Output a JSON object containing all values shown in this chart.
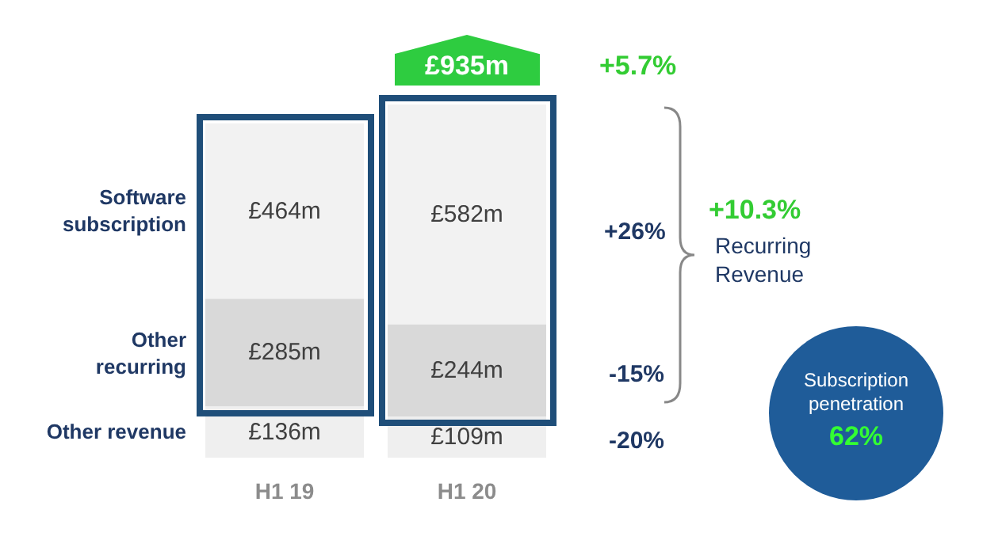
{
  "chart_data": {
    "type": "bar",
    "stacked": true,
    "categories": [
      "H1 19",
      "H1 20"
    ],
    "series": [
      {
        "name": "Other revenue",
        "color": "#efefef",
        "values": [
          136,
          109
        ],
        "value_labels": [
          "£136m",
          "£109m"
        ]
      },
      {
        "name": "Other recurring",
        "color": "#d9d9d9",
        "values": [
          285,
          244
        ],
        "value_labels": [
          "£285m",
          "£244m"
        ]
      },
      {
        "name": "Software subscription",
        "color": "#f2f2f2",
        "values": [
          464,
          582
        ],
        "value_labels": [
          "£464m",
          "£582m"
        ]
      }
    ],
    "totals": [
      null,
      "£935m"
    ],
    "annotations": [
      "+5.7%",
      "+26%",
      "-15%",
      "-20%",
      "+10.3%",
      "Recurring Revenue",
      "Subscription penetration",
      "62%"
    ],
    "legend": false
  }
}
